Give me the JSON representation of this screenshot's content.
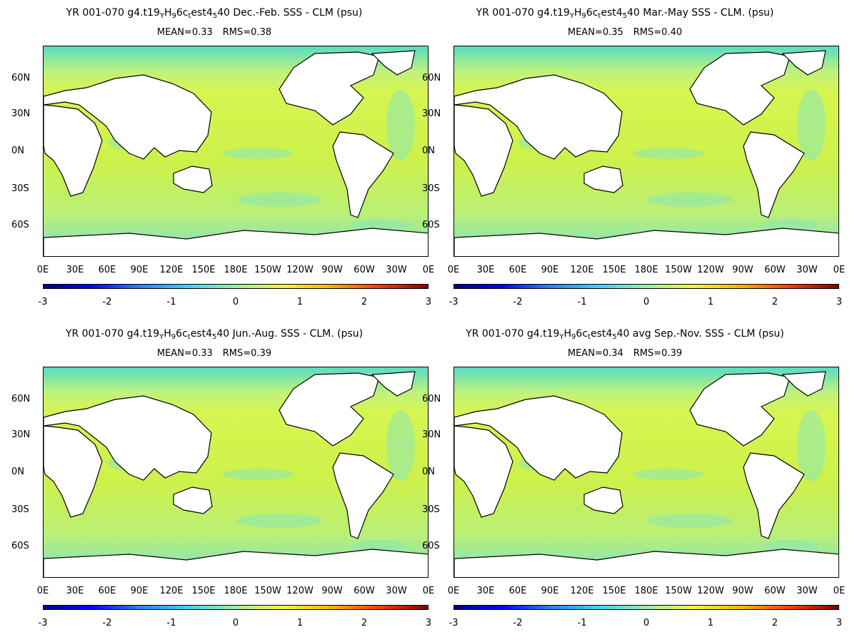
{
  "panels": [
    {
      "title_prefix": "YR 001-070 g4.t19",
      "title_suffix": "40  Dec.-Feb. SSS - CLM (psu)",
      "mean": "MEAN=0.33",
      "rms": "RMS=0.38"
    },
    {
      "title_prefix": "YR 001-070 g4.t19",
      "title_suffix": "40 Mar.-May SSS - CLM. (psu)",
      "mean": "MEAN=0.35",
      "rms": "RMS=0.40"
    },
    {
      "title_prefix": "YR 001-070 g4.t19",
      "title_suffix": "40 Jun.-Aug. SSS - CLM. (psu)",
      "mean": "MEAN=0.33",
      "rms": "RMS=0.39"
    },
    {
      "title_prefix": "YR 001-070 g4.t19",
      "title_suffix": "40 avg Sep.-Nov. SSS - CLM (psu)",
      "mean": "MEAN=0.34",
      "rms": "RMS=0.39"
    }
  ],
  "title_sub": {
    "a": "Y",
    "b": "H",
    "c": "9",
    "d": "6c",
    "e": "t",
    "f": "est4",
    "g": "5"
  },
  "lat_labels": [
    "60N",
    "30N",
    "0N",
    "30S",
    "60S"
  ],
  "lon_labels": [
    "0E",
    "30E",
    "60E",
    "90E",
    "120E",
    "150E",
    "180E",
    "150W",
    "120W",
    "90W",
    "60W",
    "30W",
    "0E"
  ],
  "colorbar": {
    "ticks": [
      "-3",
      "-2",
      "-1",
      "0",
      "1",
      "2",
      "3"
    ],
    "range": [
      -3,
      3
    ],
    "colormap": [
      "#000080",
      "#0000ff",
      "#2f7fff",
      "#37d0ff",
      "#9af0a0",
      "#f2f53b",
      "#ffb000",
      "#ff3e00",
      "#800000"
    ]
  },
  "colors": {
    "land": "#ffffff",
    "ocean_typical": "#d0f24a",
    "high_latitude": "#58dcc4"
  }
}
